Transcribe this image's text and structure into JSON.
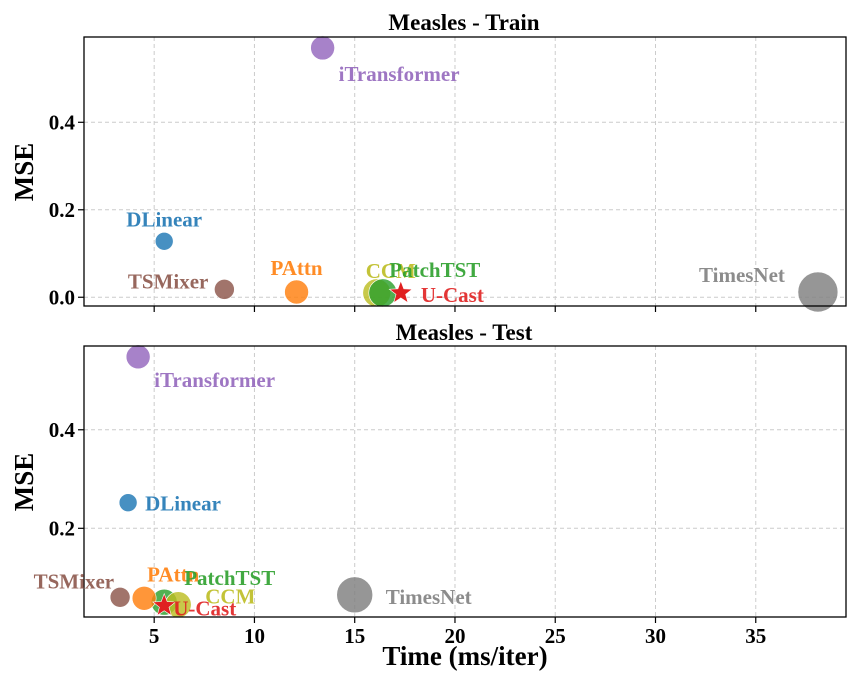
{
  "chart_data": [
    {
      "type": "scatter",
      "title": "Measles - Train",
      "xlabel": "",
      "ylabel": "MSE",
      "xlim": [
        1.5,
        39.5
      ],
      "ylim": [
        -0.02,
        0.595
      ],
      "xticks": [
        5,
        10,
        15,
        20,
        25,
        30,
        35
      ],
      "yticks": [
        0.0,
        0.2,
        0.4
      ],
      "ytick_labels": [
        "0.0",
        "0.2",
        "0.4"
      ],
      "grid": true,
      "points": [
        {
          "name": "iTransformer",
          "x": 13.4,
          "y": 0.57,
          "color": "#9467bd",
          "size": 12
        },
        {
          "name": "DLinear",
          "x": 5.5,
          "y": 0.128,
          "color": "#1f77b4",
          "size": 9
        },
        {
          "name": "TSMixer",
          "x": 8.5,
          "y": 0.018,
          "color": "#8c564b",
          "size": 10
        },
        {
          "name": "PAttn",
          "x": 12.1,
          "y": 0.012,
          "color": "#ff7f0e",
          "size": 12
        },
        {
          "name": "CCM",
          "x": 16.1,
          "y": 0.01,
          "color": "#bcbd22",
          "size": 14
        },
        {
          "name": "PatchTST",
          "x": 16.4,
          "y": 0.01,
          "color": "#2ca02c",
          "size": 14
        },
        {
          "name": "TimesNet",
          "x": 38.1,
          "y": 0.012,
          "color": "#7f7f7f",
          "size": 20
        },
        {
          "name": "U-Cast",
          "x": 17.3,
          "y": 0.01,
          "color": "#e02020",
          "size": 12,
          "marker": "star"
        }
      ]
    },
    {
      "type": "scatter",
      "title": "Measles - Test",
      "xlabel": "Time (ms/iter)",
      "ylabel": "MSE",
      "xlim": [
        1.5,
        39.5
      ],
      "ylim": [
        0.02,
        0.57
      ],
      "xticks": [
        5,
        10,
        15,
        20,
        25,
        30,
        35
      ],
      "xtick_labels": [
        "5",
        "10",
        "15",
        "20",
        "25",
        "30",
        "35"
      ],
      "yticks": [
        0.2,
        0.4
      ],
      "ytick_labels": [
        "0.2",
        "0.4"
      ],
      "grid": true,
      "points": [
        {
          "name": "iTransformer",
          "x": 4.2,
          "y": 0.548,
          "color": "#9467bd",
          "size": 12
        },
        {
          "name": "DLinear",
          "x": 3.7,
          "y": 0.252,
          "color": "#1f77b4",
          "size": 9
        },
        {
          "name": "TSMixer",
          "x": 3.3,
          "y": 0.06,
          "color": "#8c564b",
          "size": 10
        },
        {
          "name": "PAttn",
          "x": 4.5,
          "y": 0.058,
          "color": "#ff7f0e",
          "size": 12
        },
        {
          "name": "PatchTST",
          "x": 5.5,
          "y": 0.05,
          "color": "#2ca02c",
          "size": 13
        },
        {
          "name": "CCM",
          "x": 6.2,
          "y": 0.045,
          "color": "#bcbd22",
          "size": 13
        },
        {
          "name": "TimesNet",
          "x": 15.0,
          "y": 0.065,
          "color": "#7f7f7f",
          "size": 18
        },
        {
          "name": "U-Cast",
          "x": 5.5,
          "y": 0.043,
          "color": "#e02020",
          "size": 12,
          "marker": "star"
        }
      ]
    }
  ]
}
